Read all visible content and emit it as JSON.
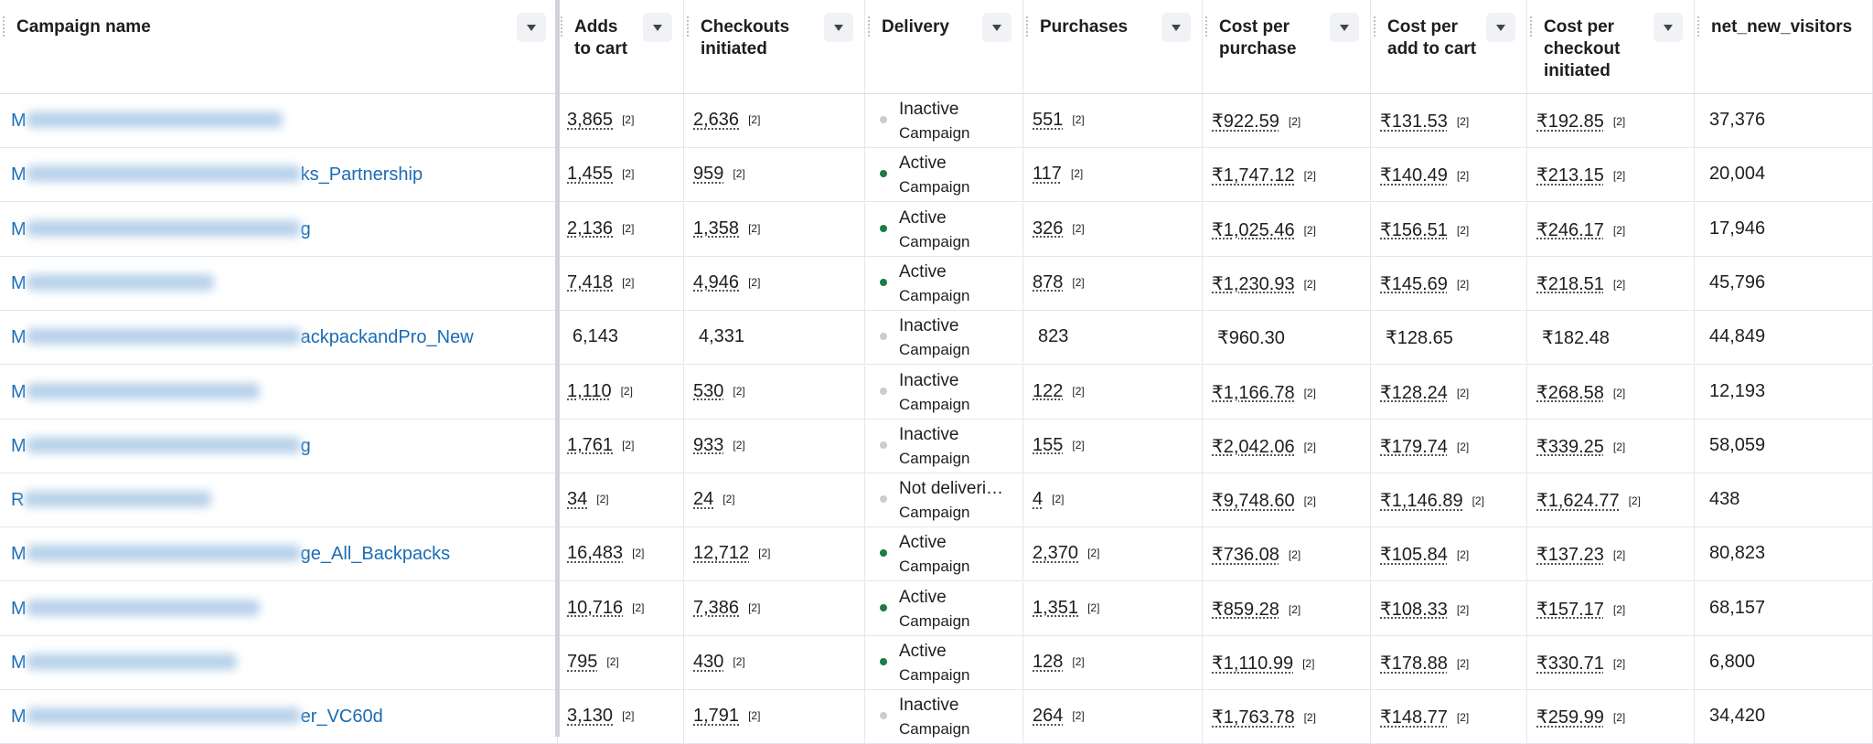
{
  "table": {
    "columns": [
      "Campaign name",
      "Adds to cart",
      "Checkouts initiated",
      "Delivery",
      "Purchases",
      "Cost per purchase",
      "Cost per add to cart",
      "Cost per checkout initiated",
      "net_new_visitors"
    ],
    "rows": [
      {
        "name_start": "M",
        "cells": [
          {
            "text": "3,865",
            "note": "[2]"
          },
          {
            "text": "2,636",
            "note": "[2]"
          },
          {
            "status": "Inactive",
            "level": "Campaign",
            "dot": "#c9ccd1"
          },
          {
            "text": "551",
            "note": "[2]"
          },
          {
            "text": "₹922.59",
            "note": "[2]"
          },
          {
            "text": "₹131.53",
            "note": "[2]"
          },
          {
            "text": "₹192.85",
            "note": "[2]"
          },
          {
            "text": "37,376"
          }
        ]
      },
      {
        "name_start": "M",
        "name_end": "ks_Partnership",
        "cells": [
          {
            "text": "1,455",
            "note": "[2]"
          },
          {
            "text": "959",
            "note": "[2]"
          },
          {
            "status": "Active",
            "level": "Campaign",
            "dot": "#1e7a46"
          },
          {
            "text": "117",
            "note": "[2]"
          },
          {
            "text": "₹1,747.12",
            "note": "[2]"
          },
          {
            "text": "₹140.49",
            "note": "[2]"
          },
          {
            "text": "₹213.15",
            "note": "[2]"
          },
          {
            "text": "20,004"
          }
        ]
      },
      {
        "name_start": "M",
        "name_end": "g",
        "cells": [
          {
            "text": "2,136",
            "note": "[2]"
          },
          {
            "text": "1,358",
            "note": "[2]"
          },
          {
            "status": "Active",
            "level": "Campaign",
            "dot": "#1e7a46"
          },
          {
            "text": "326",
            "note": "[2]"
          },
          {
            "text": "₹1,025.46",
            "note": "[2]"
          },
          {
            "text": "₹156.51",
            "note": "[2]"
          },
          {
            "text": "₹246.17",
            "note": "[2]"
          },
          {
            "text": "17,946"
          }
        ]
      },
      {
        "name_start": "M",
        "cells": [
          {
            "text": "7,418",
            "note": "[2]"
          },
          {
            "text": "4,946",
            "note": "[2]"
          },
          {
            "status": "Active",
            "level": "Campaign",
            "dot": "#1e7a46"
          },
          {
            "text": "878",
            "note": "[2]"
          },
          {
            "text": "₹1,230.93",
            "note": "[2]"
          },
          {
            "text": "₹145.69",
            "note": "[2]"
          },
          {
            "text": "₹218.51",
            "note": "[2]"
          },
          {
            "text": "45,796"
          }
        ]
      },
      {
        "name_start": "M",
        "name_end": "ackpackandPro_New",
        "cells": [
          {
            "text": "6,143"
          },
          {
            "text": "4,331"
          },
          {
            "status": "Inactive",
            "level": "Campaign",
            "dot": "#c9ccd1"
          },
          {
            "text": "823"
          },
          {
            "text": "₹960.30"
          },
          {
            "text": "₹128.65"
          },
          {
            "text": "₹182.48"
          },
          {
            "text": "44,849"
          }
        ]
      },
      {
        "name_start": "M",
        "cells": [
          {
            "text": "1,110",
            "note": "[2]"
          },
          {
            "text": "530",
            "note": "[2]"
          },
          {
            "status": "Inactive",
            "level": "Campaign",
            "dot": "#c9ccd1"
          },
          {
            "text": "122",
            "note": "[2]"
          },
          {
            "text": "₹1,166.78",
            "note": "[2]"
          },
          {
            "text": "₹128.24",
            "note": "[2]"
          },
          {
            "text": "₹268.58",
            "note": "[2]"
          },
          {
            "text": "12,193"
          }
        ]
      },
      {
        "name_start": "M",
        "name_end": "g",
        "cells": [
          {
            "text": "1,761",
            "note": "[2]"
          },
          {
            "text": "933",
            "note": "[2]"
          },
          {
            "status": "Inactive",
            "level": "Campaign",
            "dot": "#c9ccd1"
          },
          {
            "text": "155",
            "note": "[2]"
          },
          {
            "text": "₹2,042.06",
            "note": "[2]"
          },
          {
            "text": "₹179.74",
            "note": "[2]"
          },
          {
            "text": "₹339.25",
            "note": "[2]"
          },
          {
            "text": "58,059"
          }
        ]
      },
      {
        "name_start": "R",
        "cells": [
          {
            "text": "34",
            "note": "[2]"
          },
          {
            "text": "24",
            "note": "[2]"
          },
          {
            "status": "Not deliveri…",
            "level": "Campaign",
            "dot": "#c9ccd1"
          },
          {
            "text": "4",
            "note": "[2]"
          },
          {
            "text": "₹9,748.60",
            "note": "[2]"
          },
          {
            "text": "₹1,146.89",
            "note": "[2]"
          },
          {
            "text": "₹1,624.77",
            "note": "[2]"
          },
          {
            "text": "438"
          }
        ]
      },
      {
        "name_start": "M",
        "name_end": "ge_All_Backpacks",
        "cells": [
          {
            "text": "16,483",
            "note": "[2]"
          },
          {
            "text": "12,712",
            "note": "[2]"
          },
          {
            "status": "Active",
            "level": "Campaign",
            "dot": "#1e7a46"
          },
          {
            "text": "2,370",
            "note": "[2]"
          },
          {
            "text": "₹736.08",
            "note": "[2]"
          },
          {
            "text": "₹105.84",
            "note": "[2]"
          },
          {
            "text": "₹137.23",
            "note": "[2]"
          },
          {
            "text": "80,823"
          }
        ]
      },
      {
        "name_start": "M",
        "cells": [
          {
            "text": "10,716",
            "note": "[2]"
          },
          {
            "text": "7,386",
            "note": "[2]"
          },
          {
            "status": "Active",
            "level": "Campaign",
            "dot": "#1e7a46"
          },
          {
            "text": "1,351",
            "note": "[2]"
          },
          {
            "text": "₹859.28",
            "note": "[2]"
          },
          {
            "text": "₹108.33",
            "note": "[2]"
          },
          {
            "text": "₹157.17",
            "note": "[2]"
          },
          {
            "text": "68,157"
          }
        ]
      },
      {
        "name_start": "M",
        "cells": [
          {
            "text": "795",
            "note": "[2]"
          },
          {
            "text": "430",
            "note": "[2]"
          },
          {
            "status": "Active",
            "level": "Campaign",
            "dot": "#1e7a46"
          },
          {
            "text": "128",
            "note": "[2]"
          },
          {
            "text": "₹1,110.99",
            "note": "[2]"
          },
          {
            "text": "₹178.88",
            "note": "[2]"
          },
          {
            "text": "₹330.71",
            "note": "[2]"
          },
          {
            "text": "6,800"
          }
        ]
      },
      {
        "name_start": "M",
        "name_end": "er_VC60d",
        "cells": [
          {
            "text": "3,130",
            "note": "[2]"
          },
          {
            "text": "1,791",
            "note": "[2]"
          },
          {
            "status": "Inactive",
            "level": "Campaign",
            "dot": "#c9ccd1"
          },
          {
            "text": "264",
            "note": "[2]"
          },
          {
            "text": "₹1,763.78",
            "note": "[2]"
          },
          {
            "text": "₹148.77",
            "note": "[2]"
          },
          {
            "text": "₹259.99",
            "note": "[2]"
          },
          {
            "text": "34,420"
          }
        ]
      }
    ]
  }
}
